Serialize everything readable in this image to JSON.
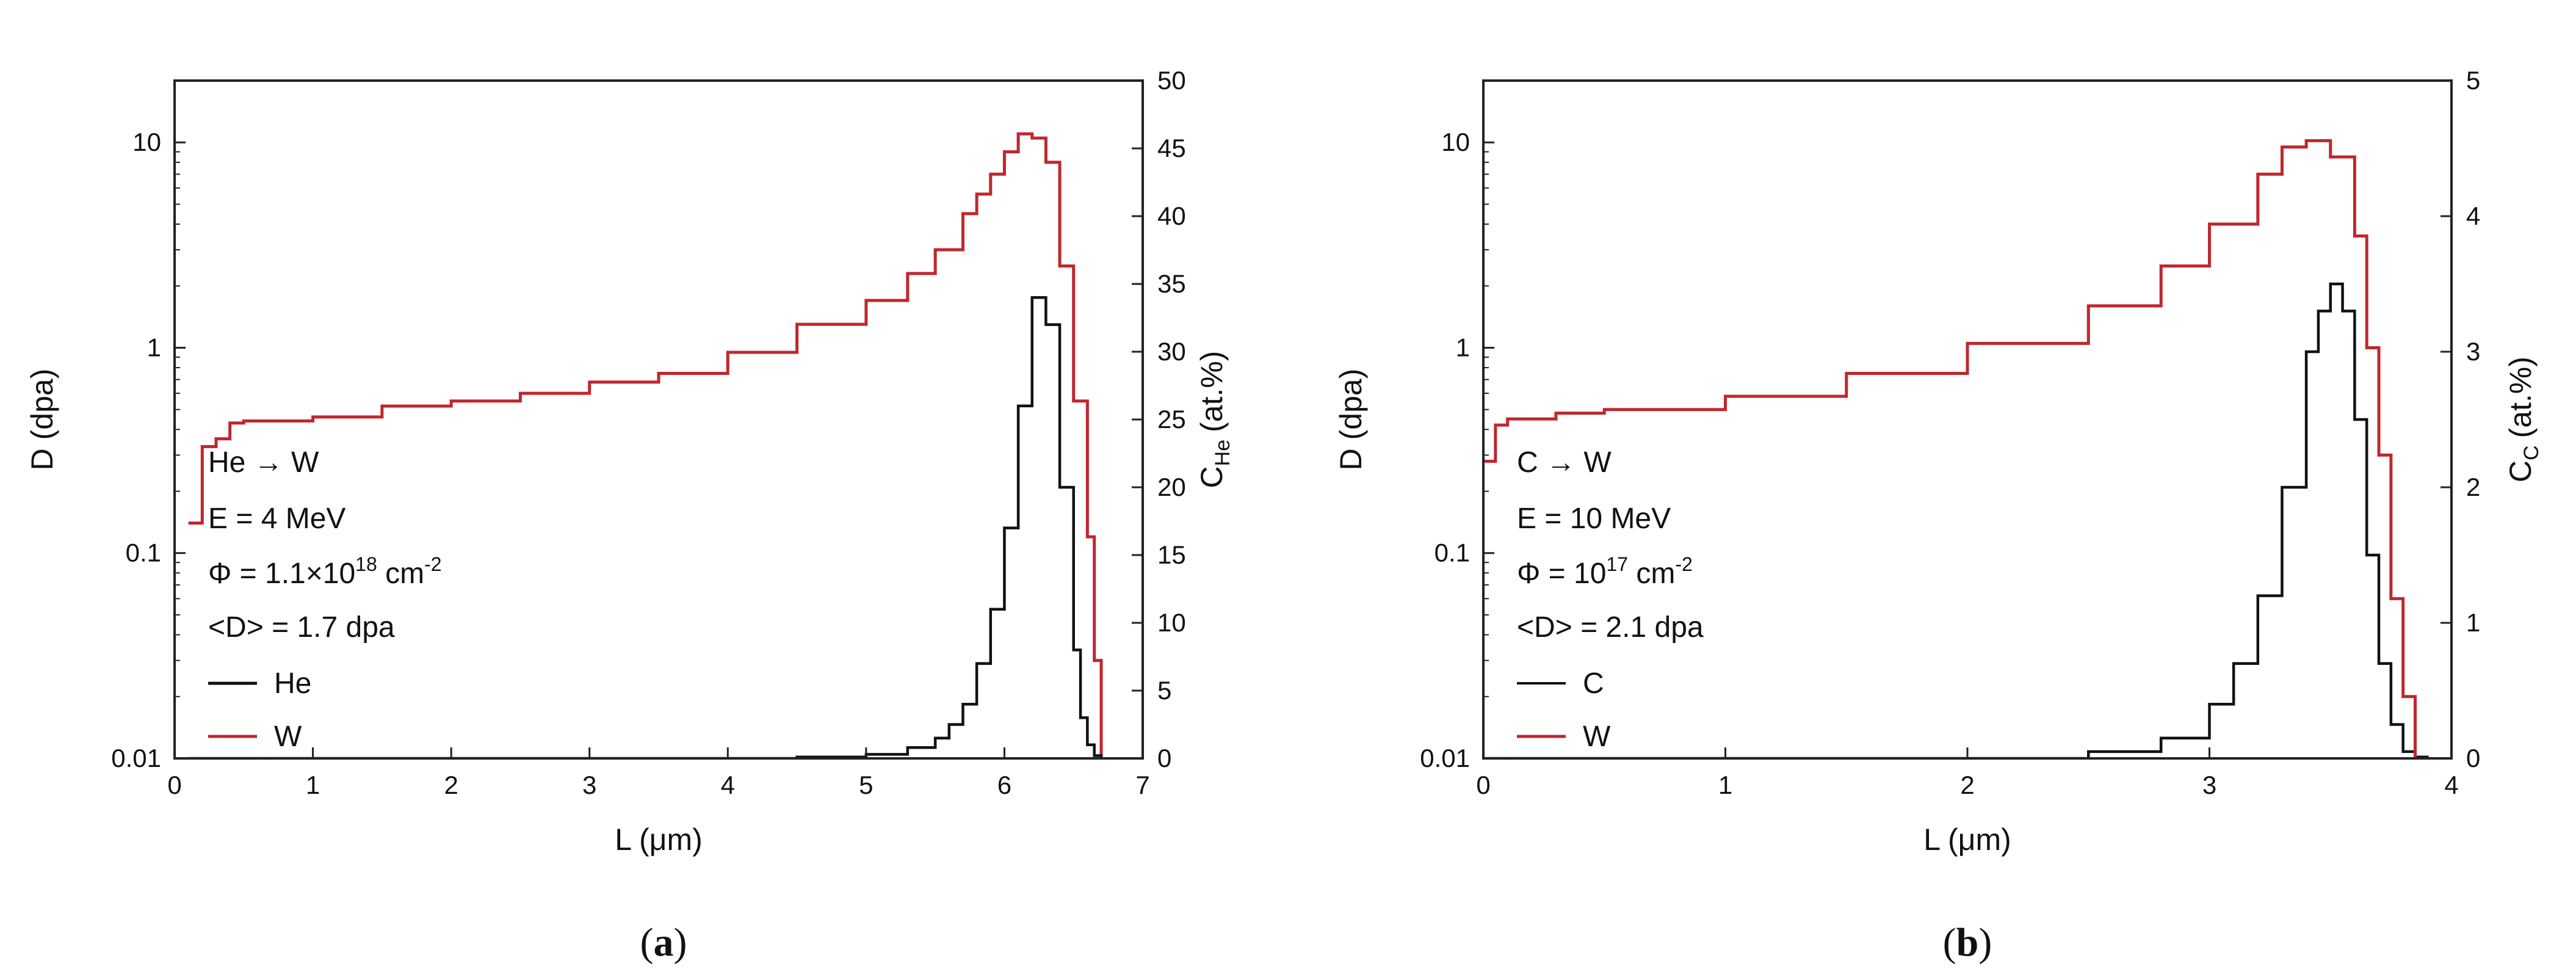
{
  "colors": {
    "W": "#c0272d",
    "He": "#111111",
    "C": "#111111",
    "axis": "#222222"
  },
  "chart_data": [
    {
      "type": "line",
      "panel_label": "a",
      "xlabel": "L (μm)",
      "ylabel": "D (dpa)",
      "y2label": "C",
      "y2label_sub": "He",
      "y2label_unit": "(at.%)",
      "xlim": [
        0,
        7
      ],
      "ylim": [
        0.01,
        20
      ],
      "yscale": "log",
      "y2lim": [
        0,
        50
      ],
      "xticks": [
        "0",
        "1",
        "2",
        "3",
        "4",
        "5",
        "6",
        "7"
      ],
      "yticks": [
        "0.01",
        "0.1",
        "1",
        "10"
      ],
      "y2ticks": [
        "0",
        "5",
        "10",
        "15",
        "20",
        "25",
        "30",
        "35",
        "40",
        "45",
        "50"
      ],
      "annotations": [
        "He → W",
        "E = 4 MeV",
        "Φ = 1.1×10",
        "18",
        " cm",
        "-2",
        "<D> = 1.7 dpa"
      ],
      "series": [
        {
          "name": "W",
          "axis": "left",
          "step": true,
          "x": [
            0.1,
            0.2,
            0.3,
            0.4,
            0.5,
            0.7,
            1.0,
            1.5,
            2.0,
            2.5,
            3.0,
            3.5,
            4.0,
            4.5,
            5.0,
            5.3,
            5.5,
            5.7,
            5.8,
            5.9,
            6.0,
            6.1,
            6.2,
            6.3,
            6.4,
            6.5,
            6.6,
            6.65,
            6.7
          ],
          "values": [
            0.14,
            0.33,
            0.36,
            0.43,
            0.44,
            0.44,
            0.46,
            0.52,
            0.55,
            0.6,
            0.68,
            0.75,
            0.95,
            1.3,
            1.7,
            2.3,
            3.0,
            4.5,
            5.6,
            7.0,
            9.0,
            11,
            10.5,
            8.0,
            2.5,
            0.55,
            0.12,
            0.03,
            0.01
          ]
        },
        {
          "name": "He",
          "axis": "right",
          "step": true,
          "x": [
            0.1,
            3.0,
            4.5,
            5.0,
            5.3,
            5.5,
            5.6,
            5.7,
            5.8,
            5.9,
            6.0,
            6.1,
            6.2,
            6.3,
            6.4,
            6.5,
            6.55,
            6.6,
            6.65,
            6.7
          ],
          "values": [
            0,
            0,
            0.1,
            0.3,
            0.8,
            1.5,
            2.5,
            4,
            7,
            11,
            17,
            26,
            34,
            32,
            20,
            8,
            3,
            1,
            0.2,
            0
          ]
        }
      ]
    },
    {
      "type": "line",
      "panel_label": "b",
      "xlabel": "L (μm)",
      "ylabel": "D (dpa)",
      "y2label": "C",
      "y2label_sub": "C",
      "y2label_unit": "(at.%)",
      "xlim": [
        0,
        4
      ],
      "ylim": [
        0.01,
        20
      ],
      "yscale": "log",
      "y2lim": [
        0,
        5
      ],
      "xticks": [
        "0",
        "1",
        "2",
        "3",
        "4"
      ],
      "yticks": [
        "0.01",
        "0.1",
        "1",
        "10"
      ],
      "y2ticks": [
        "0",
        "1",
        "2",
        "3",
        "4",
        "5"
      ],
      "annotations": [
        "C → W",
        "E = 10 MeV",
        "Φ = 10",
        "17",
        " cm",
        "-2",
        "<D> = 2.1 dpa"
      ],
      "series": [
        {
          "name": "C",
          "axis": "right",
          "step": true,
          "x": [
            0.0,
            2.0,
            2.5,
            2.8,
            3.0,
            3.1,
            3.2,
            3.3,
            3.4,
            3.45,
            3.5,
            3.55,
            3.6,
            3.65,
            3.7,
            3.75,
            3.8,
            3.85,
            3.9
          ],
          "values": [
            0,
            0,
            0.05,
            0.15,
            0.4,
            0.7,
            1.2,
            2.0,
            3.0,
            3.3,
            3.5,
            3.3,
            2.5,
            1.5,
            0.7,
            0.25,
            0.05,
            0.01,
            0
          ]
        },
        {
          "name": "W",
          "axis": "left",
          "step": true,
          "x": [
            0.0,
            0.05,
            0.1,
            0.3,
            0.5,
            1.0,
            1.5,
            2.0,
            2.5,
            2.8,
            3.0,
            3.2,
            3.3,
            3.4,
            3.5,
            3.6,
            3.65,
            3.7,
            3.75,
            3.8,
            3.85
          ],
          "values": [
            0.28,
            0.42,
            0.45,
            0.48,
            0.5,
            0.58,
            0.75,
            1.05,
            1.6,
            2.5,
            4.0,
            7.0,
            9.5,
            10.2,
            8.5,
            3.5,
            1.0,
            0.3,
            0.06,
            0.02,
            0.01
          ]
        }
      ]
    }
  ]
}
